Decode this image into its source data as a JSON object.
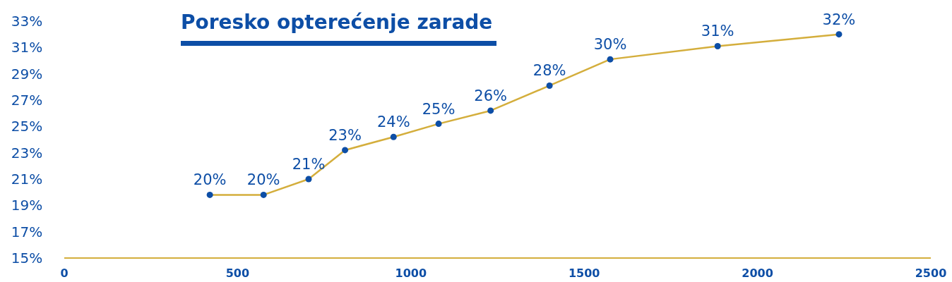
{
  "chart_data": {
    "type": "line",
    "title": "Poresko opterećenje zarade",
    "x": [
      420,
      575,
      705,
      810,
      950,
      1080,
      1230,
      1400,
      1575,
      1885,
      2235
    ],
    "series": [
      {
        "color": "#d4ae3c",
        "values": [
          19.8,
          19.8,
          21.0,
          23.2,
          24.2,
          25.2,
          26.2,
          28.1,
          30.1,
          31.1,
          32.0
        ],
        "value_labels": [
          "20%",
          "20%",
          "21%",
          "23%",
          "24%",
          "25%",
          "26%",
          "28%",
          "30%",
          "31%",
          "32%"
        ]
      }
    ],
    "marker": "circle",
    "grid": false,
    "xlim": [
      0,
      2500
    ],
    "xticks": [
      0,
      500,
      1000,
      1500,
      2000,
      2500
    ],
    "ylim": [
      15,
      33
    ],
    "yticks": [
      {
        "value": 15,
        "label": "15%"
      },
      {
        "value": 17,
        "label": "17%"
      },
      {
        "value": 19,
        "label": "19%"
      },
      {
        "value": 21,
        "label": "21%"
      },
      {
        "value": 23,
        "label": "23%"
      },
      {
        "value": 25,
        "label": "25%"
      },
      {
        "value": 27,
        "label": "27%"
      },
      {
        "value": 29,
        "label": "29%"
      },
      {
        "value": 31,
        "label": "31%"
      },
      {
        "value": 33,
        "label": "33%"
      }
    ]
  }
}
